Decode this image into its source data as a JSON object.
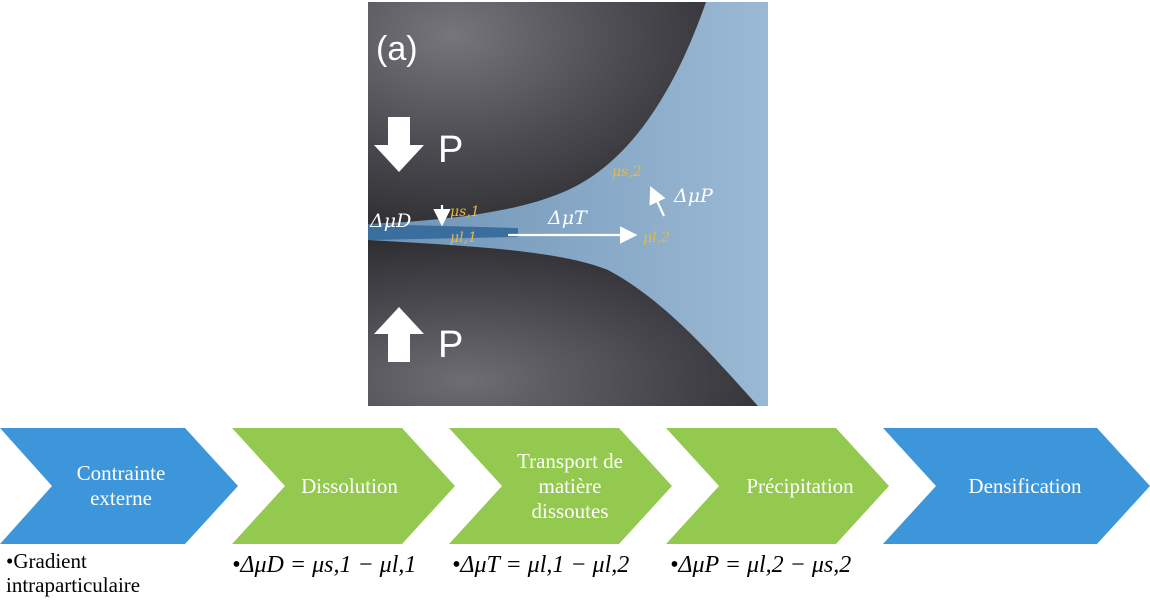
{
  "figure": {
    "panel_label": "(a)",
    "pressure_top": "P",
    "pressure_bottom": "P",
    "mu_s1": "μs,1",
    "mu_l1": "μl,1",
    "mu_s2": "μs,2",
    "mu_l2": "μl,2",
    "delta_D": "ΔμD",
    "delta_T": "ΔμT",
    "delta_P": "ΔμP"
  },
  "colors": {
    "blue": "#3d96d9",
    "green": "#93c94f",
    "dark": "#3c3c40",
    "liquid": "#8fb0cc"
  },
  "steps": [
    {
      "label": "Contrainte externe",
      "color": "blue"
    },
    {
      "label": "Dissolution",
      "color": "green"
    },
    {
      "label": "Transport de matière dissoutes",
      "color": "green"
    },
    {
      "label": "Précipitation",
      "color": "green"
    },
    {
      "label": "Densification",
      "color": "blue"
    }
  ],
  "bullets": [
    "•Gradient intraparticulaire",
    "•ΔμD = μs,1 − μl,1",
    "•ΔμT = μl,1 − μl,2",
    "•ΔμP = μl,2 − μs,2"
  ]
}
